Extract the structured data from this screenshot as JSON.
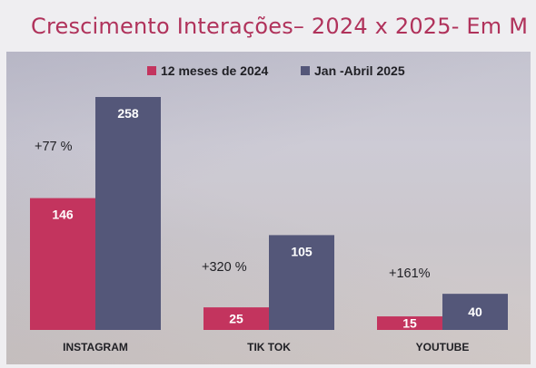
{
  "title": "Crescimento Interações– 2024 x 2025- Em M",
  "chart_data": {
    "type": "bar",
    "categories": [
      "INSTAGRAM",
      "TIK TOK",
      "YOUTUBE"
    ],
    "series": [
      {
        "name": "12 meses de 2024",
        "values": [
          146,
          25,
          15
        ],
        "color": "#c3345e"
      },
      {
        "name": "Jan -Abril 2025",
        "values": [
          258,
          105,
          40
        ],
        "color": "#545779"
      }
    ],
    "growth_labels": [
      "+77 %",
      "+320 %",
      "+161%"
    ],
    "ylim": [
      0,
      258
    ],
    "legend_position": "top",
    "grid": false,
    "xlabel": "",
    "ylabel": ""
  }
}
